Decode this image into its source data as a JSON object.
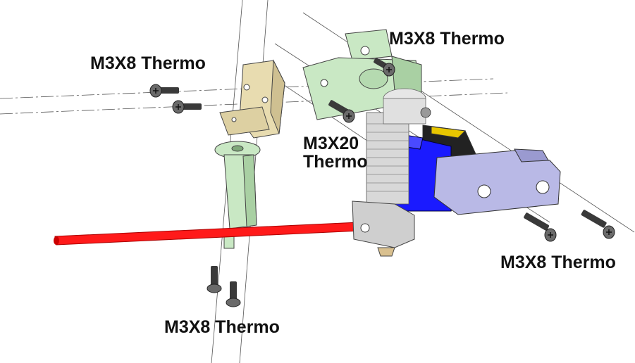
{
  "diagram": {
    "callouts": {
      "screw_pair_top_left": "M3X8 Thermo",
      "screw_top_right": "M3X8 Thermo",
      "screw_long_line1": "M3X20",
      "screw_long_line2": "Thermo",
      "screw_pair_bottom_right": "M3X8 Thermo",
      "screw_pair_bottom_left": "M3X8 Thermo"
    },
    "colors": {
      "filament_tube": "#ff1a1a",
      "fan_shroud": "#1a1aff",
      "printed_parts_green": "#c9e8c4",
      "spacer_tan": "#e8dcb0",
      "clamp_lavender": "#b9b9e6",
      "heatsink_gray": "#d8d8d8",
      "heater_block": "#cfcfcf"
    }
  }
}
